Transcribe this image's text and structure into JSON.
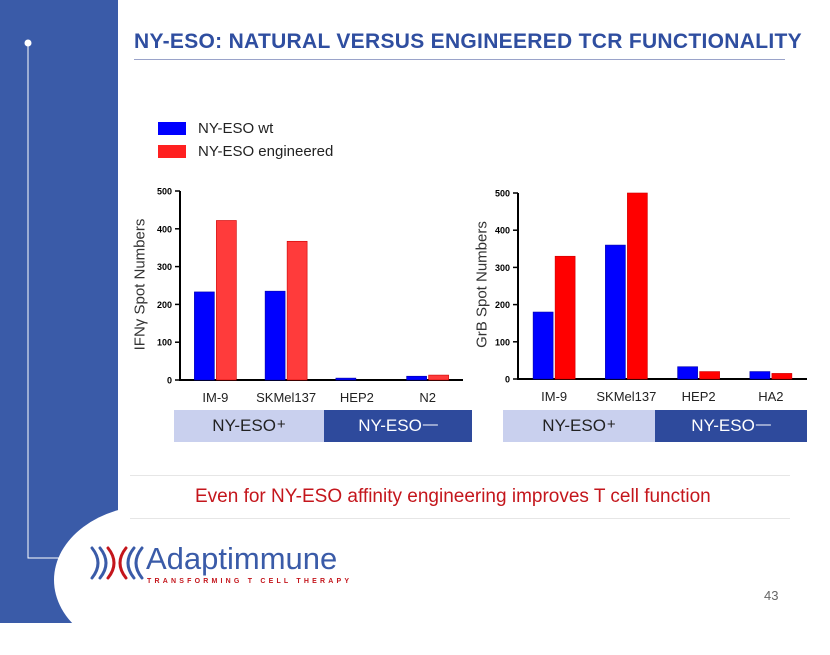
{
  "slide": {
    "title": "NY-ESO:  NATURAL VERSUS ENGINEERED TCR FUNCTIONALITY",
    "tagline": "Even for NY-ESO affinity engineering improves T cell function",
    "page_number": "43"
  },
  "logo": {
    "name": "Adaptimmune",
    "tagline": "TRANSFORMING T CELL THERAPY",
    "icon": "adaptimmune-helix-icon"
  },
  "legend": [
    {
      "label": "NY-ESO wt",
      "color": "#0000ff"
    },
    {
      "label": "NY-ESO engineered",
      "color": "#ff2020"
    }
  ],
  "groups": {
    "positive": {
      "label": "NY-ESO",
      "sup": "+"
    },
    "negative": {
      "label": "NY-ESO",
      "sup": "—"
    }
  },
  "chart_data": [
    {
      "type": "bar",
      "categories": [
        "IM-9",
        "SKMel137",
        "HEP2",
        "N2"
      ],
      "series": [
        {
          "name": "NY-ESO wt",
          "values": [
            233,
            235,
            5,
            10
          ],
          "color": "#0000ff"
        },
        {
          "name": "NY-ESO engineered",
          "values": [
            422,
            367,
            0,
            13
          ],
          "color": "#ff3b3b"
        }
      ],
      "ylabel": "IFNγ Spot Numbers",
      "ylim": [
        0,
        500
      ],
      "yticks": [
        "0",
        "100",
        "200",
        "300",
        "400",
        "500"
      ],
      "grid": false
    },
    {
      "type": "bar",
      "categories": [
        "IM-9",
        "SKMel137",
        "HEP2",
        "HA2"
      ],
      "series": [
        {
          "name": "NY-ESO wt",
          "values": [
            180,
            360,
            33,
            20
          ],
          "color": "#0000ff"
        },
        {
          "name": "NY-ESO engineered",
          "values": [
            330,
            500,
            20,
            15
          ],
          "color": "#ff0000"
        }
      ],
      "ylabel": "GrB Spot Numbers",
      "ylim": [
        0,
        500
      ],
      "yticks": [
        "0",
        "100",
        "200",
        "300",
        "400",
        "500"
      ],
      "grid": false
    }
  ]
}
